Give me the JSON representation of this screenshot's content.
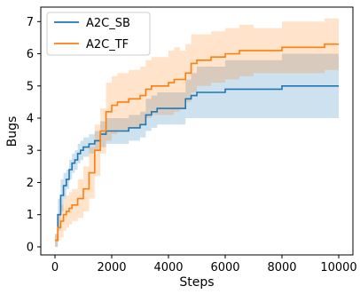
{
  "chart_data": {
    "type": "line",
    "title": "",
    "xlabel": "Steps",
    "ylabel": "Bugs",
    "xlim": [
      0,
      10000
    ],
    "ylim": [
      -0.25,
      7.45
    ],
    "xticks": [
      0,
      2000,
      4000,
      6000,
      8000,
      10000
    ],
    "yticks": [
      0,
      1,
      2,
      3,
      4,
      5,
      6,
      7
    ],
    "grid": false,
    "legend_position": "top-left",
    "series": [
      {
        "name": "A2C_SB",
        "color": "#1f77b4",
        "x": [
          0,
          100,
          200,
          300,
          400,
          500,
          600,
          700,
          800,
          900,
          1000,
          1200,
          1400,
          1600,
          1800,
          2000,
          2200,
          2400,
          2600,
          2800,
          3000,
          3200,
          3400,
          3600,
          3800,
          4000,
          4200,
          4400,
          4600,
          4800,
          5000,
          5500,
          6000,
          7000,
          7500,
          8000,
          9000,
          10000
        ],
        "y": [
          0.2,
          1.0,
          1.6,
          1.9,
          2.1,
          2.4,
          2.6,
          2.7,
          2.9,
          3.0,
          3.1,
          3.2,
          3.3,
          3.5,
          3.6,
          3.6,
          3.6,
          3.6,
          3.7,
          3.7,
          3.8,
          4.1,
          4.2,
          4.3,
          4.3,
          4.3,
          4.3,
          4.3,
          4.6,
          4.7,
          4.8,
          4.8,
          4.9,
          4.9,
          4.9,
          5.0,
          5.0,
          5.0
        ],
        "lower": [
          0.0,
          0.5,
          1.1,
          1.5,
          1.8,
          2.1,
          2.3,
          2.4,
          2.6,
          2.7,
          2.8,
          2.9,
          3.0,
          3.1,
          3.2,
          3.2,
          3.2,
          3.2,
          3.3,
          3.3,
          3.4,
          3.6,
          3.7,
          3.8,
          3.8,
          3.8,
          3.8,
          3.8,
          4.0,
          4.0,
          4.0,
          4.0,
          4.0,
          4.0,
          4.0,
          4.0,
          4.0,
          4.0
        ],
        "upper": [
          0.4,
          1.5,
          2.1,
          2.3,
          2.4,
          2.7,
          2.9,
          3.0,
          3.2,
          3.3,
          3.4,
          3.5,
          3.6,
          3.9,
          4.0,
          4.0,
          4.0,
          4.0,
          4.1,
          4.1,
          4.2,
          4.6,
          4.7,
          4.8,
          4.8,
          4.8,
          4.8,
          4.8,
          5.2,
          5.4,
          5.6,
          5.6,
          5.8,
          5.8,
          5.8,
          6.0,
          6.0,
          6.0
        ]
      },
      {
        "name": "A2C_TF",
        "color": "#ff7f0e",
        "x": [
          0,
          100,
          200,
          300,
          400,
          500,
          600,
          800,
          1000,
          1200,
          1400,
          1600,
          1800,
          2000,
          2200,
          2400,
          2600,
          2800,
          3000,
          3200,
          3400,
          3600,
          3800,
          4000,
          4200,
          4400,
          4600,
          4800,
          5000,
          5500,
          6000,
          6500,
          7000,
          8000,
          9000,
          9500,
          10000
        ],
        "y": [
          0.2,
          0.6,
          0.8,
          1.0,
          1.1,
          1.2,
          1.3,
          1.5,
          1.8,
          2.3,
          3.0,
          3.6,
          4.2,
          4.4,
          4.5,
          4.5,
          4.6,
          4.6,
          4.7,
          4.9,
          5.0,
          5.0,
          5.0,
          5.1,
          5.2,
          5.2,
          5.4,
          5.7,
          5.8,
          5.9,
          6.0,
          6.1,
          6.1,
          6.2,
          6.2,
          6.3,
          6.3
        ],
        "lower": [
          0.0,
          0.2,
          0.3,
          0.5,
          0.6,
          0.7,
          0.8,
          0.9,
          1.1,
          1.5,
          2.2,
          2.9,
          3.3,
          3.5,
          3.6,
          3.6,
          3.7,
          3.7,
          3.8,
          4.0,
          4.1,
          4.1,
          4.1,
          4.1,
          4.2,
          4.3,
          4.5,
          4.8,
          5.0,
          5.1,
          5.2,
          5.3,
          5.4,
          5.4,
          5.4,
          5.5,
          5.5
        ],
        "upper": [
          0.4,
          1.0,
          1.3,
          1.5,
          1.6,
          1.7,
          1.8,
          2.1,
          2.5,
          3.1,
          3.8,
          4.3,
          5.1,
          5.3,
          5.4,
          5.4,
          5.5,
          5.5,
          5.6,
          5.8,
          5.9,
          5.9,
          5.9,
          6.1,
          6.2,
          6.1,
          6.3,
          6.6,
          6.6,
          6.7,
          6.8,
          6.9,
          6.8,
          7.0,
          7.0,
          7.1,
          7.1
        ]
      }
    ]
  }
}
